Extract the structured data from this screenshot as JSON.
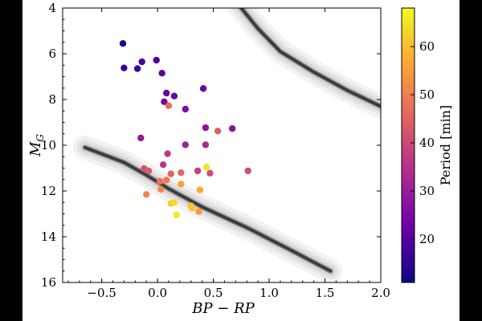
{
  "chart_data": {
    "type": "scatter",
    "xlabel": "BP − RP",
    "ylabel": "M_G",
    "xlim": [
      -0.85,
      2.0
    ],
    "ylim": [
      16,
      4
    ],
    "y_inverted": true,
    "xticks": [
      "−0.5",
      "0.0",
      "0.5",
      "1.0",
      "1.5",
      "2.0"
    ],
    "yticks": [
      "4",
      "6",
      "8",
      "10",
      "12",
      "14",
      "16"
    ],
    "grid": false,
    "colorbar": {
      "label": "Period [min]",
      "range": [
        11,
        68
      ],
      "ticks": [
        "20",
        "30",
        "40",
        "50",
        "60"
      ],
      "colormap": "plasma",
      "colors": [
        "#0d0887",
        "#6a00a8",
        "#b12a90",
        "#e16462",
        "#fca636",
        "#f0f921"
      ]
    },
    "background_density": {
      "color": "#b0b0b0",
      "white_dwarf_sequence": [
        [
          -0.65,
          10.1
        ],
        [
          -0.3,
          10.75
        ],
        [
          -0.1,
          11.3
        ],
        [
          0.1,
          11.9
        ],
        [
          0.4,
          12.7
        ],
        [
          0.8,
          13.6
        ],
        [
          1.2,
          14.6
        ],
        [
          1.55,
          15.5
        ]
      ],
      "main_sequence": [
        [
          0.7,
          3.7
        ],
        [
          0.9,
          4.9
        ],
        [
          1.1,
          5.9
        ],
        [
          1.4,
          6.8
        ],
        [
          1.7,
          7.6
        ],
        [
          2.0,
          8.3
        ]
      ]
    },
    "series": [
      {
        "points": [
          {
            "x": -0.31,
            "y": 5.55,
            "period": 13
          },
          {
            "x": -0.3,
            "y": 6.62,
            "period": 16
          },
          {
            "x": -0.18,
            "y": 6.65,
            "period": 17
          },
          {
            "x": -0.14,
            "y": 6.35,
            "period": 18
          },
          {
            "x": -0.01,
            "y": 6.28,
            "period": 19
          },
          {
            "x": 0.04,
            "y": 6.85,
            "period": 20
          },
          {
            "x": 0.08,
            "y": 7.72,
            "period": 22
          },
          {
            "x": 0.15,
            "y": 7.85,
            "period": 23
          },
          {
            "x": 0.06,
            "y": 8.1,
            "period": 24
          },
          {
            "x": 0.41,
            "y": 7.52,
            "period": 22
          },
          {
            "x": 0.25,
            "y": 8.42,
            "period": 26
          },
          {
            "x": 0.1,
            "y": 8.27,
            "period": 47
          },
          {
            "x": 0.43,
            "y": 9.23,
            "period": 28
          },
          {
            "x": 0.67,
            "y": 9.27,
            "period": 27
          },
          {
            "x": 0.54,
            "y": 9.38,
            "period": 44
          },
          {
            "x": -0.15,
            "y": 9.68,
            "period": 29
          },
          {
            "x": 0.25,
            "y": 9.98,
            "period": 31
          },
          {
            "x": 0.43,
            "y": 9.98,
            "period": 33
          },
          {
            "x": 0.09,
            "y": 10.37,
            "period": 37
          },
          {
            "x": 0.05,
            "y": 10.85,
            "period": 36
          },
          {
            "x": -0.12,
            "y": 11.02,
            "period": 42
          },
          {
            "x": -0.08,
            "y": 11.12,
            "period": 43
          },
          {
            "x": 0.12,
            "y": 11.25,
            "period": 45
          },
          {
            "x": 0.21,
            "y": 11.2,
            "period": 46
          },
          {
            "x": 0.36,
            "y": 11.12,
            "period": 38
          },
          {
            "x": 0.47,
            "y": 11.22,
            "period": 40
          },
          {
            "x": 0.81,
            "y": 11.12,
            "period": 41
          },
          {
            "x": 0.44,
            "y": 10.95,
            "period": 65
          },
          {
            "x": 0.02,
            "y": 11.58,
            "period": 48
          },
          {
            "x": 0.08,
            "y": 11.52,
            "period": 49
          },
          {
            "x": 0.21,
            "y": 11.7,
            "period": 56
          },
          {
            "x": 0.38,
            "y": 11.95,
            "period": 57
          },
          {
            "x": 0.03,
            "y": 11.93,
            "period": 52
          },
          {
            "x": -0.1,
            "y": 12.15,
            "period": 51
          },
          {
            "x": 0.12,
            "y": 12.55,
            "period": 62
          },
          {
            "x": 0.15,
            "y": 12.5,
            "period": 64
          },
          {
            "x": 0.3,
            "y": 12.65,
            "period": 60
          },
          {
            "x": 0.31,
            "y": 12.75,
            "period": 61
          },
          {
            "x": 0.37,
            "y": 12.9,
            "period": 55
          },
          {
            "x": 0.17,
            "y": 13.05,
            "period": 66
          }
        ]
      }
    ]
  }
}
